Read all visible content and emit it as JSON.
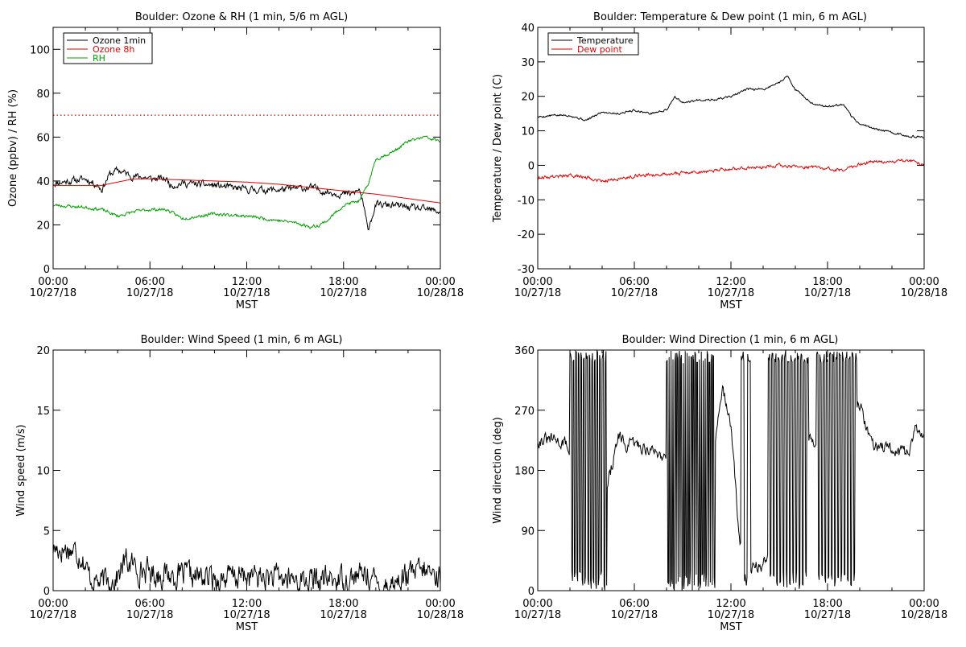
{
  "chart_data": [
    {
      "type": "line",
      "title": "Boulder: Ozone & RH (1 min, 5/6 m AGL)",
      "xlabel": "MST",
      "ylabel": "Ozone (ppbv) / RH (%)",
      "xlim": [
        0,
        24
      ],
      "ylim": [
        0,
        110
      ],
      "yticks": [
        0,
        20,
        40,
        60,
        80,
        100
      ],
      "xtick_labels": [
        [
          "00:00",
          "10/27/18"
        ],
        [
          "06:00",
          "10/27/18"
        ],
        [
          "12:00",
          "10/27/18"
        ],
        [
          "18:00",
          "10/27/18"
        ],
        [
          "00:00",
          "10/28/18"
        ]
      ],
      "legend_position": "top-left",
      "reference_lines": [
        {
          "y": 70,
          "style": "dotted",
          "color": "#e00000"
        }
      ],
      "series": [
        {
          "name": "Ozone 1min",
          "color": "#000000",
          "noise": 1.3,
          "seed": 11,
          "x": [
            0,
            1,
            2,
            2.8,
            3,
            3.5,
            4,
            5,
            5.5,
            6,
            7,
            7.3,
            8,
            10,
            12,
            14,
            16,
            17,
            18,
            18.5,
            19,
            19.2,
            19.5,
            20,
            21,
            22,
            23,
            24
          ],
          "y": [
            39,
            40,
            41,
            38,
            36,
            43,
            45,
            42,
            42,
            41,
            41,
            38,
            39,
            38,
            36,
            36,
            37,
            35,
            34,
            34,
            36,
            30,
            18,
            29,
            29,
            28,
            27,
            26
          ]
        },
        {
          "name": "Ozone 8h",
          "color": "#e00000",
          "noise": 0,
          "seed": 0,
          "x": [
            0,
            2,
            3,
            4,
            5,
            6,
            8,
            10,
            12,
            14,
            16,
            18,
            20,
            22,
            24
          ],
          "y": [
            38,
            38,
            38,
            39.5,
            41,
            41,
            40.5,
            40,
            39.5,
            38.5,
            37,
            35.5,
            34,
            32,
            30
          ]
        },
        {
          "name": "RH",
          "color": "#00a000",
          "noise": 0.6,
          "seed": 23,
          "x": [
            0,
            2,
            3,
            4,
            5,
            6,
            7,
            8,
            10,
            12,
            14,
            15,
            16,
            16.5,
            17,
            18,
            19,
            19.5,
            19.8,
            20,
            21,
            22,
            23,
            24
          ],
          "y": [
            29,
            28,
            27,
            24,
            26,
            27,
            27,
            23,
            25,
            24,
            22,
            21,
            19,
            20,
            22,
            29,
            31,
            38,
            45,
            50,
            53,
            58,
            60,
            58
          ]
        }
      ]
    },
    {
      "type": "line",
      "title": "Boulder: Temperature & Dew point (1 min, 6 m AGL)",
      "xlabel": "MST",
      "ylabel": "Temperature / Dew point (C)",
      "xlim": [
        0,
        24
      ],
      "ylim": [
        -30,
        40
      ],
      "yticks": [
        -30,
        -20,
        -10,
        0,
        10,
        20,
        30,
        40
      ],
      "xtick_labels": [
        [
          "00:00",
          "10/27/18"
        ],
        [
          "06:00",
          "10/27/18"
        ],
        [
          "12:00",
          "10/27/18"
        ],
        [
          "18:00",
          "10/27/18"
        ],
        [
          "00:00",
          "10/28/18"
        ]
      ],
      "legend_position": "top-left",
      "series": [
        {
          "name": "Temperature",
          "color": "#000000",
          "noise": 0.25,
          "seed": 5,
          "x": [
            0,
            1,
            2,
            3,
            4,
            5,
            6,
            7,
            8,
            8.5,
            9,
            10,
            11,
            12,
            13,
            14,
            15,
            15.5,
            16,
            17,
            18,
            19,
            19.5,
            20,
            21,
            22,
            23,
            24
          ],
          "y": [
            14,
            14.5,
            14.5,
            13,
            15.5,
            15,
            16,
            15,
            16,
            20,
            18,
            19,
            19,
            20,
            22,
            22,
            24,
            26,
            22,
            18,
            17,
            17.5,
            14,
            12,
            10.5,
            9.5,
            8.5,
            8
          ]
        },
        {
          "name": "Dew point",
          "color": "#e00000",
          "noise": 0.4,
          "seed": 9,
          "x": [
            0,
            2,
            3,
            4,
            5,
            6,
            8,
            10,
            12,
            14,
            15,
            16,
            17,
            18,
            19,
            20,
            21,
            22,
            23,
            24
          ],
          "y": [
            -3.5,
            -3,
            -3.5,
            -4.5,
            -4,
            -3,
            -2.5,
            -2,
            -1,
            -0.5,
            0,
            -0.5,
            -0.5,
            -1,
            -1.5,
            0.5,
            1,
            1,
            1.5,
            0
          ]
        }
      ]
    },
    {
      "type": "line",
      "title": "Boulder: Wind Speed (1 min, 6 m AGL)",
      "xlabel": "MST",
      "ylabel": "Wind speed (m/s)",
      "xlim": [
        0,
        24
      ],
      "ylim": [
        0,
        20
      ],
      "yticks": [
        0,
        5,
        10,
        15,
        20
      ],
      "xtick_labels": [
        [
          "00:00",
          "10/27/18"
        ],
        [
          "06:00",
          "10/27/18"
        ],
        [
          "12:00",
          "10/27/18"
        ],
        [
          "18:00",
          "10/27/18"
        ],
        [
          "00:00",
          "10/28/18"
        ]
      ],
      "series": [
        {
          "name": "",
          "color": "#000000",
          "noise": 0.9,
          "seed": 17,
          "x": [
            0,
            1,
            1.8,
            2.2,
            3,
            4,
            4.5,
            5,
            6,
            8,
            10,
            12,
            14,
            16,
            18,
            19,
            19.5,
            20,
            21,
            22,
            23,
            24
          ],
          "y": [
            3.5,
            3.5,
            3,
            1.2,
            0.6,
            1.2,
            2.5,
            2,
            1.5,
            1.2,
            1,
            1.2,
            1,
            0.8,
            1,
            1.2,
            1.5,
            0.5,
            0.6,
            1.2,
            1.6,
            1.2
          ]
        }
      ]
    },
    {
      "type": "line",
      "title": "Boulder: Wind Direction (1 min, 6 m AGL)",
      "xlabel": "MST",
      "ylabel": "Wind direction (deg)",
      "xlim": [
        0,
        24
      ],
      "ylim": [
        0,
        360
      ],
      "yticks": [
        0,
        90,
        180,
        270,
        360
      ],
      "xtick_labels": [
        [
          "00:00",
          "10/27/18"
        ],
        [
          "06:00",
          "10/27/18"
        ],
        [
          "12:00",
          "10/27/18"
        ],
        [
          "18:00",
          "10/27/18"
        ],
        [
          "00:00",
          "10/28/18"
        ]
      ],
      "series": [
        {
          "name": "",
          "color": "#000000",
          "noise": 8,
          "seed": 31,
          "x": [
            0,
            1,
            1.8,
            2,
            3,
            4,
            5,
            5.5,
            6,
            7,
            8,
            8.5,
            9,
            10,
            11,
            11.5,
            12,
            12.5,
            13,
            14,
            14.5,
            15,
            16,
            16.5,
            17,
            18,
            19,
            19.5,
            20,
            20.5,
            21,
            22,
            23,
            23.5,
            24
          ],
          "y": [
            225,
            225,
            220,
            200,
            140,
            120,
            230,
            215,
            220,
            210,
            200,
            260,
            180,
            150,
            220,
            300,
            250,
            80,
            30,
            40,
            50,
            250,
            200,
            260,
            220,
            210,
            200,
            270,
            280,
            240,
            215,
            210,
            205,
            245,
            225
          ],
          "flips": [
            [
              2.0,
              4.3,
              12
            ],
            [
              8.0,
              11.0,
              16
            ],
            [
              12.6,
              13.2,
              5
            ],
            [
              14.3,
              16.8,
              10
            ],
            [
              17.3,
              19.8,
              10
            ]
          ]
        }
      ]
    }
  ]
}
